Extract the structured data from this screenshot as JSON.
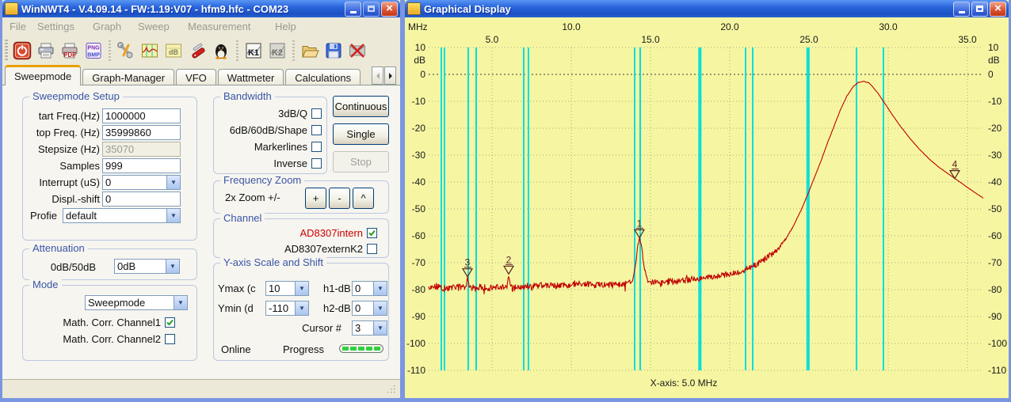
{
  "colors": {
    "plot_bg": "#f6f6a2",
    "grid": "#a8a882",
    "zero_line": "#3a3a3a",
    "band_line": "#00dede",
    "curve": "#c00000",
    "marker": "#5a2020",
    "channel_red": "#cc0000",
    "group_title": "#3a55a5"
  },
  "left_window": {
    "title": "WinNWT4 - V.4.09.14 - FW:1.19:V07 - hfm9.hfc - COM23",
    "menu_items": [
      "File",
      "Settings",
      "Graph",
      "Sweep",
      "Measurement",
      "Help"
    ],
    "toolbar_groups": [
      [
        "power-off",
        "print",
        "print-pdf",
        "export-image"
      ],
      [
        "settings-tools",
        "graph-display",
        "db-scale",
        "tools-knife",
        "linux-tux"
      ],
      [
        "channel-k1",
        "channel-k2"
      ],
      [
        "open-file",
        "save-file",
        "close-connection"
      ]
    ],
    "tabs": {
      "items": [
        "Sweepmode",
        "Graph-Manager",
        "VFO",
        "Wattmeter",
        "Calculations"
      ],
      "active": "Sweepmode"
    },
    "groups": {
      "sweepmode_setup": {
        "title": "Sweepmode Setup",
        "fields": [
          {
            "name": "start-freq",
            "label": "tart Freq.(Hz)",
            "value": "1000000",
            "type": "input"
          },
          {
            "name": "stop-freq",
            "label": "top Freq. (Hz)",
            "value": "35999860",
            "type": "input"
          },
          {
            "name": "stepsize",
            "label": "Stepsize (Hz)",
            "value": "35070",
            "type": "input",
            "disabled": true
          },
          {
            "name": "samples",
            "label": "Samples",
            "value": "999",
            "type": "input"
          },
          {
            "name": "interrupt",
            "label": "Interrupt (uS)",
            "value": "0",
            "type": "combo"
          },
          {
            "name": "displ-shift",
            "label": "Displ.-shift",
            "value": "0",
            "type": "input"
          },
          {
            "name": "profile",
            "label": "Profie",
            "value": "default",
            "type": "combo",
            "wide": true
          }
        ]
      },
      "attenuation": {
        "title": "Attenuation",
        "label": "0dB/50dB",
        "value": "0dB"
      },
      "mode": {
        "title": "Mode",
        "combo_value": "Sweepmode",
        "checkboxes": [
          {
            "name": "math-corr-channel1",
            "label": "Math. Corr. Channel1",
            "checked": true
          },
          {
            "name": "math-corr-channel2",
            "label": "Math. Corr. Channel2",
            "checked": false
          }
        ]
      },
      "bandwidth": {
        "title": "Bandwidth",
        "checkboxes": [
          {
            "name": "3db-q",
            "label": "3dB/Q",
            "checked": false
          },
          {
            "name": "6db-60db-shape",
            "label": "6dB/60dB/Shape",
            "checked": false
          },
          {
            "name": "markerlines",
            "label": "Markerlines",
            "checked": false
          },
          {
            "name": "inverse",
            "label": "Inverse",
            "checked": false
          }
        ]
      },
      "sweep_buttons": [
        {
          "name": "continuous",
          "label": "Continuous",
          "enabled": true
        },
        {
          "name": "single",
          "label": "Single",
          "enabled": true
        },
        {
          "name": "stop",
          "label": "Stop",
          "enabled": false
        }
      ],
      "frequency_zoom": {
        "title": "Frequency Zoom",
        "label": "2x Zoom +/-",
        "buttons": [
          {
            "name": "zoom-plus",
            "label": "+"
          },
          {
            "name": "zoom-minus",
            "label": "-"
          },
          {
            "name": "zoom-caret",
            "label": "^"
          }
        ]
      },
      "channel": {
        "title": "Channel",
        "rows": [
          {
            "name": "ad8307intern",
            "label": "AD8307intern",
            "checked": true,
            "red": true
          },
          {
            "name": "ad8307externk2",
            "label": "AD8307externK2",
            "checked": false,
            "red": false
          }
        ]
      },
      "yaxis": {
        "title": "Y-axis Scale and Shift",
        "row1": {
          "label": "Ymax (c",
          "value": "10",
          "label2": "h1-dB",
          "value2": "0"
        },
        "row2": {
          "label": "Ymin (d",
          "value": "-110",
          "label2": "h2-dB",
          "value2": "0"
        },
        "cursor": {
          "label": "Cursor #",
          "value": "3"
        },
        "status": {
          "online": "Online",
          "progress": "Progress",
          "progress_segments": 5
        }
      }
    }
  },
  "right_window": {
    "title": "Graphical Display"
  },
  "chart_data": {
    "type": "line",
    "title": "Graphical Display",
    "x_axis": {
      "unit": "MHz",
      "min": 1,
      "max": 36,
      "grid_step_mhz": 5,
      "caption": "X-axis: 5.0 MHz",
      "tick_row_top": [
        "10.0",
        "20.0",
        "30.0"
      ],
      "tick_row_bottom": [
        "5.0",
        "15.0",
        "25.0",
        "35.0"
      ]
    },
    "y_axis": {
      "unit": "dB",
      "max": 10,
      "min": -110,
      "step": 10
    },
    "ham_band_lines_mhz": [
      1.8,
      2.0,
      3.5,
      4.0,
      7.0,
      7.3,
      14.0,
      14.35,
      18.068,
      18.168,
      21.0,
      21.45,
      24.89,
      24.99,
      28.0,
      29.7
    ],
    "markers": [
      {
        "id": "1",
        "mhz": 14.3,
        "db": -61
      },
      {
        "id": "2",
        "mhz": 6.05,
        "db": -74.5
      },
      {
        "id": "3",
        "mhz": 3.45,
        "db": -75.5
      },
      {
        "id": "4",
        "mhz": 34.2,
        "db": -39
      }
    ],
    "noise_db": 1.5,
    "series": [
      {
        "name": "AD8307intern",
        "color": "#c00000",
        "points_mhz_db": [
          [
            1,
            -79.5
          ],
          [
            1.6,
            -79
          ],
          [
            2.2,
            -79.5
          ],
          [
            2.8,
            -79
          ],
          [
            3.35,
            -79
          ],
          [
            3.45,
            -75.5
          ],
          [
            3.6,
            -79.5
          ],
          [
            4.2,
            -79
          ],
          [
            4.8,
            -79.5
          ],
          [
            5.4,
            -79
          ],
          [
            5.95,
            -79
          ],
          [
            6.05,
            -74.5
          ],
          [
            6.2,
            -79.5
          ],
          [
            6.8,
            -79
          ],
          [
            7.4,
            -79
          ],
          [
            8,
            -78.5
          ],
          [
            9,
            -78.5
          ],
          [
            10,
            -78
          ],
          [
            11,
            -78
          ],
          [
            12,
            -78.2
          ],
          [
            13,
            -78
          ],
          [
            13.6,
            -78
          ],
          [
            13.85,
            -77
          ],
          [
            14.05,
            -71
          ],
          [
            14.2,
            -63.5
          ],
          [
            14.3,
            -61
          ],
          [
            14.45,
            -64.5
          ],
          [
            14.6,
            -72
          ],
          [
            14.85,
            -77
          ],
          [
            15.5,
            -77.3
          ],
          [
            16.5,
            -76.8
          ],
          [
            17.5,
            -76.3
          ],
          [
            18.5,
            -75.6
          ],
          [
            19.5,
            -74.8
          ],
          [
            20.5,
            -73.5
          ],
          [
            21,
            -72.5
          ],
          [
            21.5,
            -71
          ],
          [
            22,
            -69.5
          ],
          [
            22.5,
            -67.5
          ],
          [
            23,
            -65
          ],
          [
            23.5,
            -61.5
          ],
          [
            24,
            -56.5
          ],
          [
            24.5,
            -50.5
          ],
          [
            25,
            -43.5
          ],
          [
            25.4,
            -37.5
          ],
          [
            25.8,
            -31.5
          ],
          [
            26.2,
            -25
          ],
          [
            26.6,
            -19
          ],
          [
            27,
            -13
          ],
          [
            27.4,
            -8
          ],
          [
            27.8,
            -4.5
          ],
          [
            28.1,
            -3
          ],
          [
            28.45,
            -2.6
          ],
          [
            28.8,
            -3.2
          ],
          [
            29,
            -4.5
          ],
          [
            29.35,
            -7
          ],
          [
            29.7,
            -10
          ],
          [
            30.2,
            -14.5
          ],
          [
            30.8,
            -19.5
          ],
          [
            31.4,
            -24
          ],
          [
            32,
            -28
          ],
          [
            32.6,
            -31.5
          ],
          [
            33.2,
            -34.5
          ],
          [
            33.8,
            -37
          ],
          [
            34.4,
            -39.5
          ],
          [
            35,
            -42
          ],
          [
            35.5,
            -44
          ],
          [
            36,
            -46
          ]
        ]
      }
    ]
  }
}
